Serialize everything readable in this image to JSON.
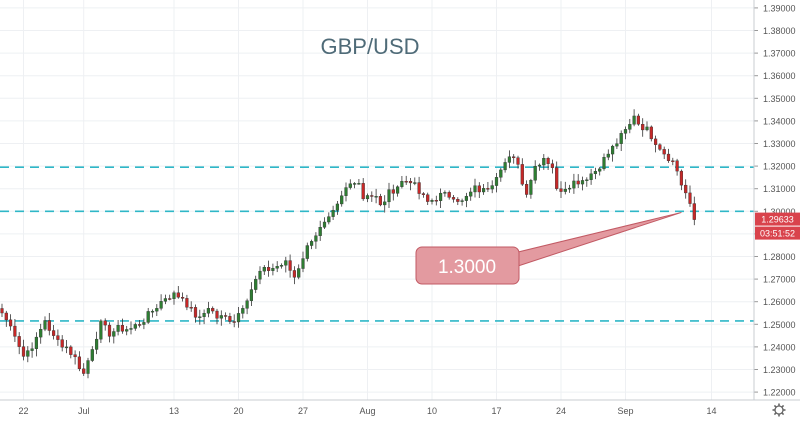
{
  "colors": {
    "up_candle": "#2e7d32",
    "down_candle": "#c62828",
    "wick": "#333333",
    "grid": "#eef0f3",
    "level_line": "#2fb7c7",
    "price_label_bg": "#d9434c",
    "callout_bg": "#e39aa0",
    "callout_border": "#c25a64",
    "title": "#4f6b78",
    "axis_text": "#555555"
  },
  "chart_data": {
    "type": "candlestick",
    "title": "GBP/USD",
    "ylim": [
      1.2165,
      1.3935
    ],
    "yticks": [
      "1.39000",
      "1.38000",
      "1.37000",
      "1.36000",
      "1.35000",
      "1.34000",
      "1.33000",
      "1.32000",
      "1.31000",
      "1.30000",
      "1.29000",
      "1.28000",
      "1.27000",
      "1.26000",
      "1.25000",
      "1.24000",
      "1.23000",
      "1.22000"
    ],
    "xtick_labels": [
      "22",
      "Jul",
      "13",
      "20",
      "27",
      "Aug",
      "10",
      "17",
      "24",
      "Sep",
      "14"
    ],
    "xtick_index": [
      5,
      19,
      40,
      55,
      70,
      85,
      100,
      115,
      130,
      145,
      165
    ],
    "horizontal_levels": [
      1.3195,
      1.3,
      1.2515
    ],
    "current_price": "1.29633",
    "countdown": "03:51:52",
    "annotation": {
      "text": "1.3000",
      "points_to": [
        158,
        1.2995
      ]
    },
    "gear_icon": "gear-icon",
    "anchors": [
      [
        0,
        1.255
      ],
      [
        3,
        1.246
      ],
      [
        5,
        1.236
      ],
      [
        8,
        1.243
      ],
      [
        10,
        1.252
      ],
      [
        12,
        1.244
      ],
      [
        15,
        1.24
      ],
      [
        17,
        1.235
      ],
      [
        19,
        1.228
      ],
      [
        21,
        1.24
      ],
      [
        23,
        1.25
      ],
      [
        25,
        1.246
      ],
      [
        27,
        1.248
      ],
      [
        30,
        1.248
      ],
      [
        33,
        1.252
      ],
      [
        35,
        1.256
      ],
      [
        38,
        1.262
      ],
      [
        40,
        1.263
      ],
      [
        42,
        1.262
      ],
      [
        44,
        1.256
      ],
      [
        46,
        1.252
      ],
      [
        48,
        1.258
      ],
      [
        50,
        1.253
      ],
      [
        52,
        1.253
      ],
      [
        54,
        1.252
      ],
      [
        55,
        1.255
      ],
      [
        57,
        1.262
      ],
      [
        60,
        1.273
      ],
      [
        63,
        1.275
      ],
      [
        66,
        1.277
      ],
      [
        68,
        1.271
      ],
      [
        70,
        1.28
      ],
      [
        72,
        1.288
      ],
      [
        74,
        1.292
      ],
      [
        76,
        1.296
      ],
      [
        78,
        1.302
      ],
      [
        80,
        1.31
      ],
      [
        82,
        1.314
      ],
      [
        83,
        1.313
      ],
      [
        84,
        1.306
      ],
      [
        85,
        1.308
      ],
      [
        87,
        1.306
      ],
      [
        88,
        1.302
      ],
      [
        90,
        1.308
      ],
      [
        93,
        1.313
      ],
      [
        95,
        1.314
      ],
      [
        97,
        1.308
      ],
      [
        99,
        1.304
      ],
      [
        102,
        1.307
      ],
      [
        105,
        1.307
      ],
      [
        107,
        1.304
      ],
      [
        110,
        1.31
      ],
      [
        112,
        1.309
      ],
      [
        114,
        1.313
      ],
      [
        116,
        1.32
      ],
      [
        118,
        1.323
      ],
      [
        120,
        1.322
      ],
      [
        121,
        1.312
      ],
      [
        122,
        1.309
      ],
      [
        124,
        1.32
      ],
      [
        126,
        1.324
      ],
      [
        128,
        1.32
      ],
      [
        129,
        1.309
      ],
      [
        131,
        1.311
      ],
      [
        133,
        1.313
      ],
      [
        135,
        1.314
      ],
      [
        138,
        1.318
      ],
      [
        140,
        1.323
      ],
      [
        142,
        1.328
      ],
      [
        144,
        1.333
      ],
      [
        146,
        1.338
      ],
      [
        147,
        1.343
      ],
      [
        148,
        1.339
      ],
      [
        150,
        1.336
      ],
      [
        152,
        1.331
      ],
      [
        154,
        1.326
      ],
      [
        156,
        1.322
      ],
      [
        157,
        1.318
      ],
      [
        158,
        1.312
      ],
      [
        159,
        1.308
      ],
      [
        160,
        1.302
      ],
      [
        161,
        1.29633
      ]
    ]
  }
}
